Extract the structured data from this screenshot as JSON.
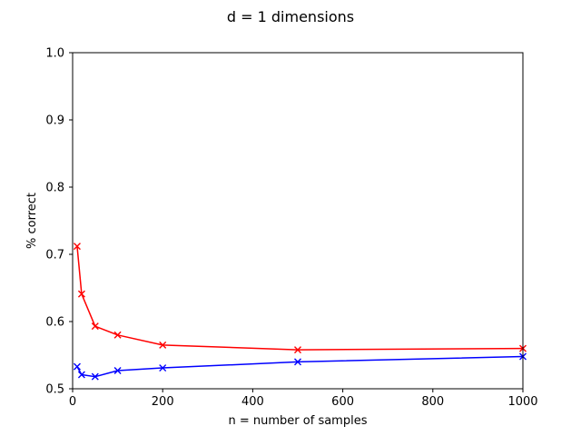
{
  "chart_data": {
    "type": "line",
    "title": "d = 1 dimensions",
    "xlabel": "n = number of samples",
    "ylabel": "% correct",
    "xlim": [
      0,
      1000
    ],
    "ylim": [
      0.5,
      1.0
    ],
    "xticks": [
      0,
      200,
      400,
      600,
      800,
      1000
    ],
    "yticks": [
      0.5,
      0.6,
      0.7,
      0.8,
      0.9,
      1.0
    ],
    "marker": "x",
    "grid": false,
    "legend": "none",
    "series": [
      {
        "color": "#ff0000",
        "x": [
          10,
          20,
          50,
          100,
          200,
          500,
          1000
        ],
        "y": [
          0.712,
          0.641,
          0.593,
          0.58,
          0.565,
          0.558,
          0.56
        ]
      },
      {
        "color": "#0000ff",
        "x": [
          10,
          20,
          50,
          100,
          200,
          500,
          1000
        ],
        "y": [
          0.533,
          0.521,
          0.518,
          0.527,
          0.531,
          0.54,
          0.548
        ]
      }
    ]
  }
}
